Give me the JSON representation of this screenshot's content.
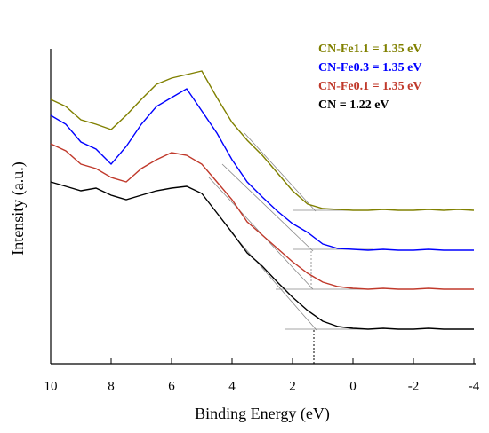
{
  "chart_data": {
    "type": "line",
    "xlabel": "Binding Energy (eV)",
    "ylabel": "Intensity (a.u.)",
    "xlim": [
      10,
      -4
    ],
    "xticks": [
      10,
      8,
      6,
      4,
      2,
      0,
      -2,
      -4
    ],
    "ylim": [
      0,
      100
    ],
    "x": [
      10,
      9.5,
      9,
      8.5,
      8,
      7.5,
      7,
      6.5,
      6,
      5.5,
      5,
      4.5,
      4,
      3.5,
      3,
      2.5,
      2,
      1.5,
      1,
      0.5,
      0,
      -0.5,
      -1,
      -1.5,
      -2,
      -2.5,
      -3,
      -3.5,
      -4
    ],
    "series": [
      {
        "name": "CN-Fe1.1 = 1.35 eV",
        "color": "#808000",
        "values": [
          74.5,
          72.5,
          68.75,
          67.5,
          66,
          70,
          74.5,
          78.75,
          80.5,
          81.5,
          82.5,
          75,
          68,
          63,
          58.75,
          53.75,
          48.75,
          45,
          43.75,
          43.5,
          43.25,
          43.25,
          43.5,
          43.25,
          43.25,
          43.5,
          43.25,
          43.5,
          43.25
        ]
      },
      {
        "name": "CN-Fe0.3 = 1.35 eV",
        "color": "#0000ff",
        "values": [
          70,
          67.5,
          62.5,
          60.5,
          56.25,
          61.25,
          67.5,
          72.5,
          75,
          77.5,
          71.25,
          65,
          57.5,
          51.25,
          47,
          43,
          39.5,
          37,
          33.75,
          32.5,
          32.25,
          32,
          32.25,
          32,
          32,
          32.25,
          32,
          32,
          32
        ]
      },
      {
        "name": "CN-Fe0.1 = 1.35 eV",
        "color": "#c0392b",
        "values": [
          62,
          60,
          56.25,
          55,
          52.5,
          51.25,
          55,
          57.5,
          59.5,
          58.75,
          56.25,
          51.25,
          46.25,
          40,
          36.25,
          32.5,
          28.75,
          25.5,
          23,
          21.75,
          21.25,
          21,
          21.25,
          21,
          21,
          21.25,
          21,
          21,
          21
        ]
      },
      {
        "name": "CN = 1.22 eV",
        "color": "#000000",
        "values": [
          51.25,
          50,
          48.75,
          49.5,
          47.5,
          46.25,
          47.5,
          48.75,
          49.5,
          50,
          48,
          42.5,
          37,
          31.25,
          27.5,
          23,
          18.75,
          15,
          12,
          10.5,
          10,
          9.75,
          10,
          9.75,
          9.75,
          10,
          9.75,
          9.75,
          9.75
        ]
      }
    ]
  }
}
